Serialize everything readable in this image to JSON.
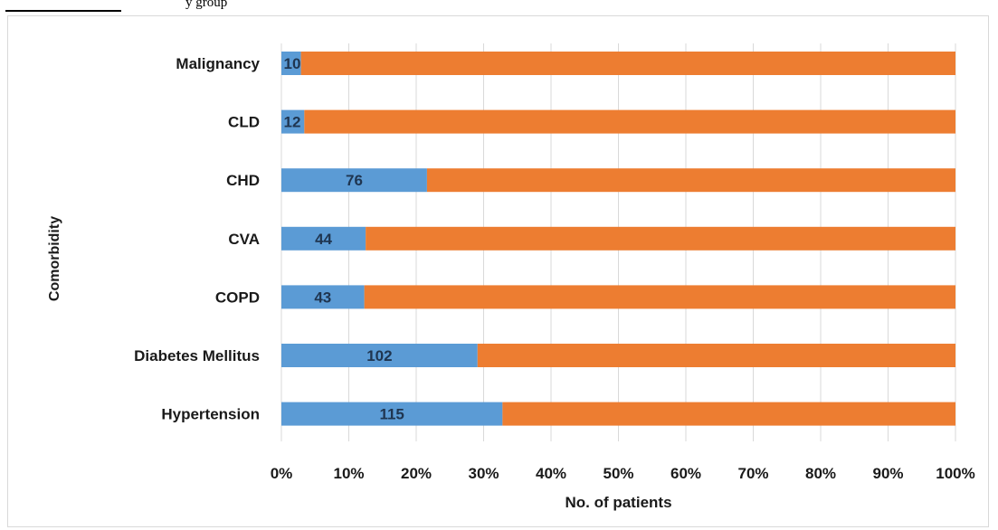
{
  "caption_fragment": "y group",
  "colors": {
    "series_blue": "#5b9bd5",
    "series_orange": "#ed7d31",
    "grid": "#d9d9d9",
    "text": "#1a1a1a"
  },
  "chart_data": {
    "type": "bar",
    "orientation": "horizontal",
    "stacked": "100%",
    "xlabel": "No. of patients",
    "ylabel": "Comorbidity",
    "xlim": [
      0,
      100
    ],
    "x_ticks": [
      "0%",
      "10%",
      "20%",
      "30%",
      "40%",
      "50%",
      "60%",
      "70%",
      "80%",
      "90%",
      "100%"
    ],
    "grid": "vertical",
    "categories": [
      "Malignancy",
      "CLD",
      "CHD",
      "CVA",
      "COPD",
      "Diabetes Mellitus",
      "Hypertension"
    ],
    "series": [
      {
        "color": "#5b9bd5",
        "labels": [
          "10",
          "12",
          "76",
          "44",
          "43",
          "102",
          "115"
        ],
        "values": [
          10,
          12,
          76,
          44,
          43,
          102,
          115
        ],
        "percent": [
          2.9,
          3.4,
          21.6,
          12.5,
          12.3,
          29.1,
          32.8
        ]
      },
      {
        "color": "#ed7d31",
        "percent": [
          97.1,
          96.6,
          78.4,
          87.5,
          87.7,
          70.9,
          67.2
        ]
      }
    ]
  }
}
